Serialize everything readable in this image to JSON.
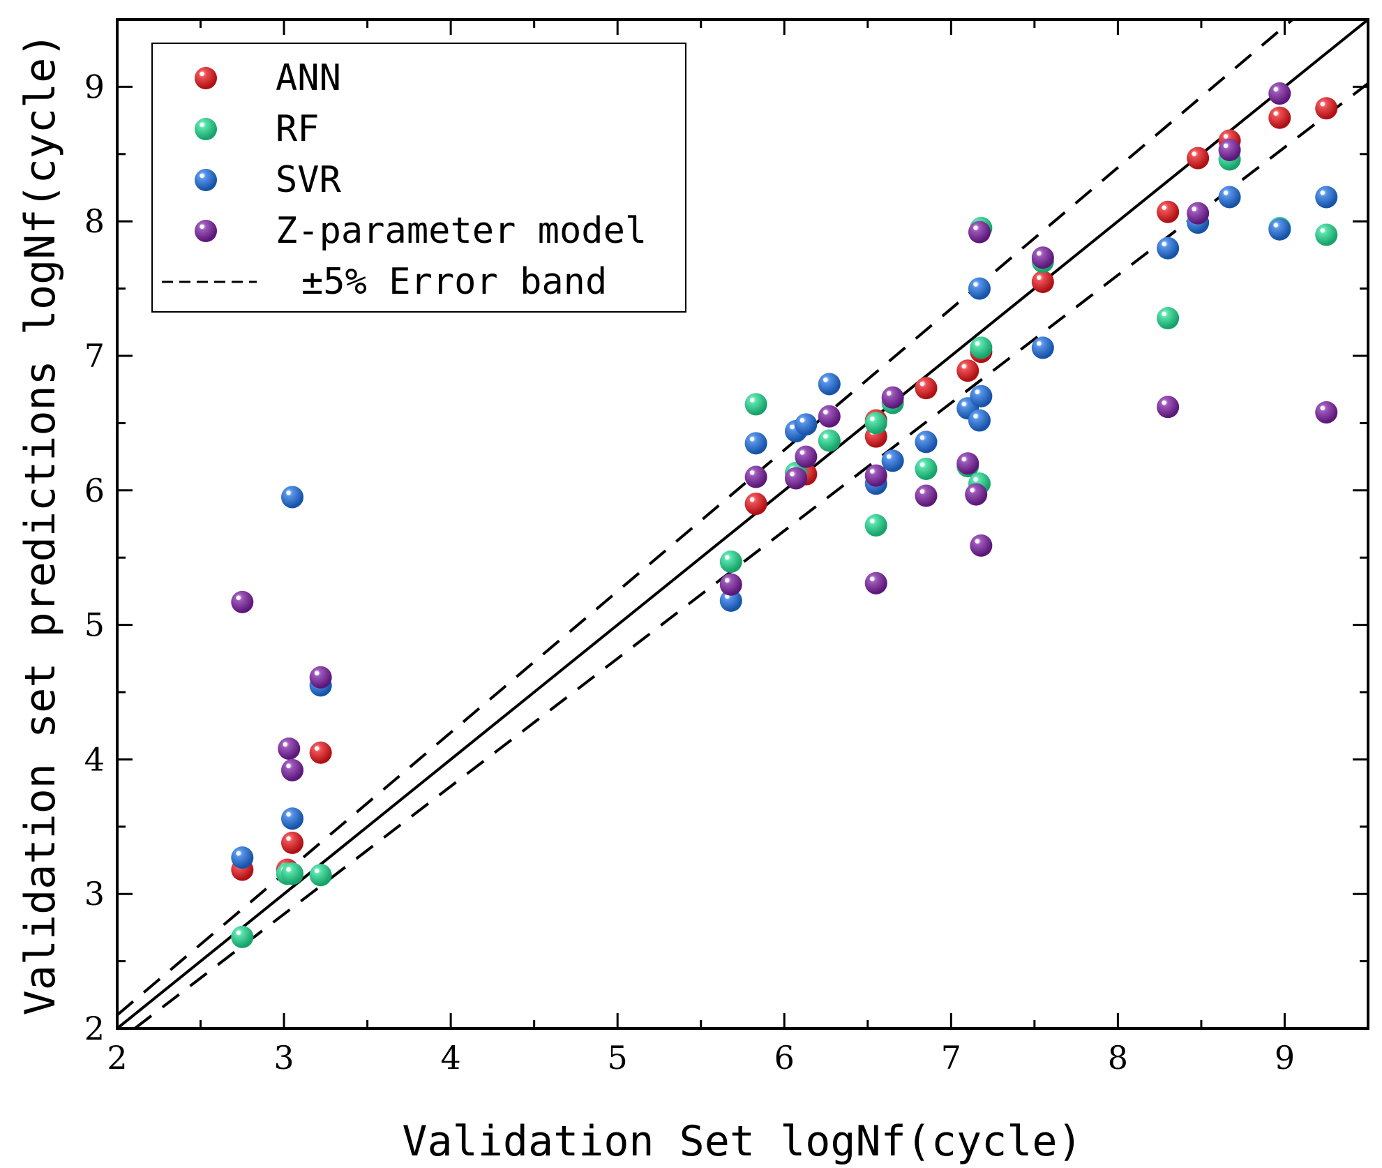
{
  "chart_data": {
    "type": "scatter",
    "title": "",
    "xlabel": "Validation Set logNf(cycle)",
    "ylabel": "Validation set predictions logNf(cycle)",
    "xlim": [
      2,
      9.5
    ],
    "ylim": [
      2,
      9.5
    ],
    "xticks": [
      "2",
      "3",
      "4",
      "5",
      "6",
      "7",
      "8",
      "9"
    ],
    "yticks": [
      "2",
      "3",
      "4",
      "5",
      "6",
      "7",
      "8",
      "9"
    ],
    "legend_position": "top-left",
    "reference_line": {
      "slope": 1,
      "label": ""
    },
    "error_band": {
      "label": "±5% Error band",
      "upper_factor": 1.05,
      "lower_factor": 0.95
    },
    "series": [
      {
        "name": "ANN",
        "color": "#e8161b",
        "x": [
          2.75,
          3.02,
          3.05,
          3.22,
          5.83,
          6.13,
          6.55,
          6.55,
          6.85,
          7.1,
          7.18,
          7.55,
          8.3,
          8.48,
          8.67,
          8.97,
          9.25
        ],
        "y": [
          3.18,
          3.18,
          3.38,
          4.05,
          5.9,
          6.12,
          6.52,
          6.4,
          6.76,
          6.89,
          7.03,
          7.55,
          8.07,
          8.47,
          8.6,
          8.77,
          8.84
        ]
      },
      {
        "name": "RF",
        "color": "#1fd88e",
        "x": [
          2.75,
          3.02,
          3.05,
          3.22,
          5.68,
          5.83,
          6.07,
          6.27,
          6.55,
          6.55,
          6.65,
          6.85,
          7.1,
          7.17,
          7.18,
          7.18,
          7.55,
          8.3,
          8.67,
          8.97,
          9.25
        ],
        "y": [
          2.68,
          3.15,
          3.15,
          3.14,
          5.47,
          6.64,
          6.13,
          6.37,
          6.5,
          5.74,
          6.65,
          6.16,
          6.18,
          6.05,
          7.06,
          7.95,
          7.7,
          7.28,
          8.46,
          7.95,
          7.9
        ]
      },
      {
        "name": "SVR",
        "color": "#1e6fe0",
        "x": [
          2.75,
          3.05,
          3.05,
          3.22,
          5.68,
          5.83,
          6.07,
          6.13,
          6.27,
          6.55,
          6.65,
          6.85,
          7.1,
          7.17,
          7.18,
          7.17,
          7.55,
          8.3,
          8.48,
          8.67,
          8.97,
          9.25
        ],
        "y": [
          3.27,
          5.95,
          3.56,
          4.55,
          5.18,
          6.35,
          6.44,
          6.49,
          6.79,
          6.05,
          6.22,
          6.36,
          6.61,
          6.52,
          6.7,
          7.5,
          7.06,
          7.8,
          7.99,
          8.18,
          7.94,
          8.18
        ]
      },
      {
        "name": "Z-parameter model",
        "color": "#7b1fa2",
        "x": [
          2.75,
          3.03,
          3.05,
          3.22,
          5.68,
          5.83,
          6.07,
          6.13,
          6.27,
          6.55,
          6.55,
          6.65,
          6.85,
          7.1,
          7.15,
          7.18,
          7.17,
          7.55,
          8.3,
          8.48,
          8.67,
          8.97,
          9.25
        ],
        "y": [
          5.17,
          4.08,
          3.92,
          4.61,
          5.3,
          6.1,
          6.09,
          6.25,
          6.55,
          5.31,
          6.11,
          6.69,
          5.96,
          6.2,
          5.97,
          5.59,
          7.92,
          7.73,
          6.62,
          8.06,
          8.53,
          8.95,
          6.58
        ]
      }
    ]
  }
}
